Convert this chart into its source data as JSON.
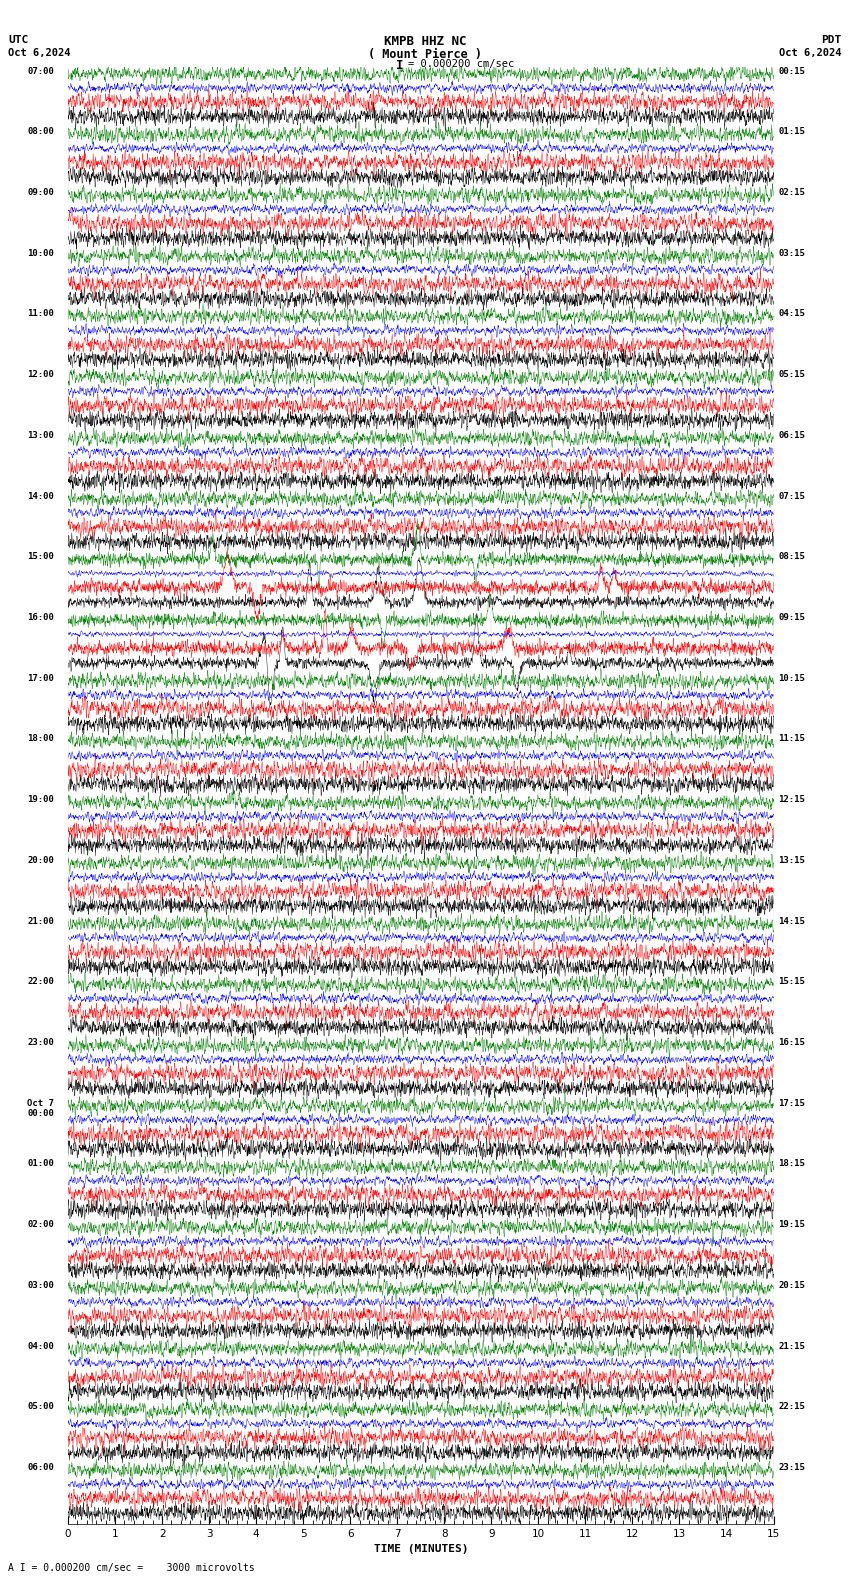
{
  "title_line1": "KMPB HHZ NC",
  "title_line2": "( Mount Pierce )",
  "scale_label": "= 0.000200 cm/sec",
  "scale_bar_char": "I",
  "utc_label": "UTC",
  "date_left": "Oct 6,2024",
  "date_right": "Oct 6,2024",
  "pdt_label": "PDT",
  "footer": "A I = 0.000200 cm/sec =    3000 microvolts",
  "xlabel": "TIME (MINUTES)",
  "time_per_row_min": 15,
  "num_groups": 24,
  "colors": [
    "#000000",
    "#ff0000",
    "#0000ff",
    "#008000"
  ],
  "bg_color": "#ffffff",
  "left_times_utc": [
    "07:00",
    "08:00",
    "09:00",
    "10:00",
    "11:00",
    "12:00",
    "13:00",
    "14:00",
    "15:00",
    "16:00",
    "17:00",
    "18:00",
    "19:00",
    "20:00",
    "21:00",
    "22:00",
    "23:00",
    "Oct 7\n00:00",
    "01:00",
    "02:00",
    "03:00",
    "04:00",
    "05:00",
    "06:00"
  ],
  "right_times_pdt": [
    "00:15",
    "01:15",
    "02:15",
    "03:15",
    "04:15",
    "05:15",
    "06:15",
    "07:15",
    "08:15",
    "09:15",
    "10:15",
    "11:15",
    "12:15",
    "13:15",
    "14:15",
    "15:15",
    "16:15",
    "17:15",
    "18:15",
    "19:15",
    "20:15",
    "21:15",
    "22:15",
    "23:15"
  ],
  "event_groups": [
    8,
    9
  ],
  "event_group_16": 9
}
